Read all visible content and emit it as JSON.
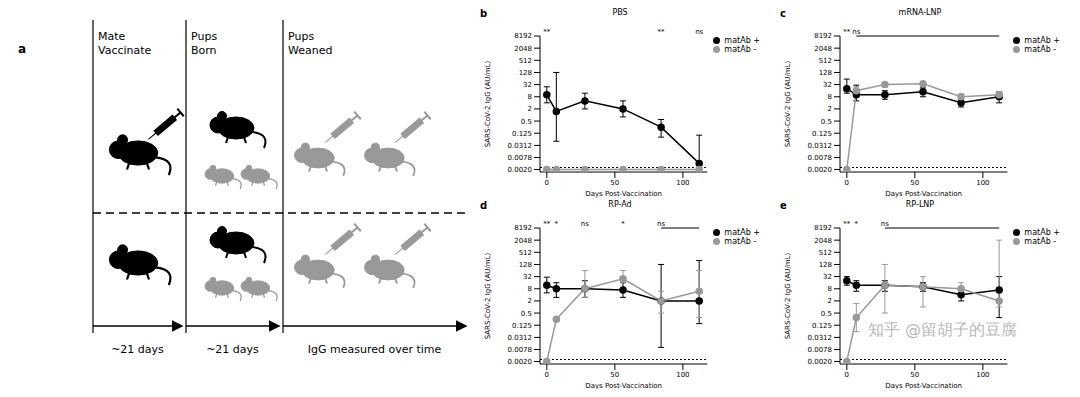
{
  "diagram": {
    "label": "a",
    "columns": [
      {
        "title": [
          "Mate",
          "Vaccinate"
        ]
      },
      {
        "title": [
          "Pups",
          "Born"
        ]
      },
      {
        "title": [
          "Pups",
          "Weaned"
        ]
      }
    ],
    "timeline": [
      "~21 days",
      "~21 days",
      "IgG measured over time"
    ]
  },
  "watermark": "知乎 @留胡子的豆腐",
  "chart_data": [
    {
      "panel": "b",
      "type": "line",
      "title": "PBS",
      "x_label": "Days Post-Vaccination",
      "y_label": "SARS-CoV-2 IgG (AU/mL)",
      "x": [
        0,
        7,
        28,
        56,
        84,
        112
      ],
      "xlim": [
        -5,
        118
      ],
      "xticks": [
        0,
        50,
        100
      ],
      "ylim": [
        0.0015,
        8192
      ],
      "yticks": [
        {
          "value": 0.002,
          "label": "0.0020"
        },
        0.0078,
        0.0312,
        0.125,
        0.5,
        2,
        8,
        32,
        128,
        512,
        2048,
        8192
      ],
      "log": "y",
      "legend": "right",
      "dotted_line": 0.0025,
      "annotations": [
        {
          "x": 0,
          "text": "**"
        },
        {
          "x": 84,
          "text": "**"
        },
        {
          "x": 112,
          "text": "ns"
        }
      ],
      "series": [
        {
          "name": "matAb +",
          "color": "#000000",
          "marker": "circle",
          "values": [
            10,
            1.5,
            5,
            2,
            0.25,
            0.004
          ],
          "error_low": [
            4,
            0.05,
            2,
            0.8,
            0.08,
            0.0025
          ],
          "error_high": [
            25,
            128,
            12,
            5,
            0.6,
            0.1
          ]
        },
        {
          "name": "matAb -",
          "color": "#999999",
          "marker": "circle",
          "values": [
            0.002,
            0.002,
            0.002,
            0.002,
            0.002,
            0.002
          ],
          "error_low": [
            null,
            null,
            null,
            null,
            null,
            null
          ],
          "error_high": [
            null,
            null,
            null,
            null,
            null,
            null
          ]
        }
      ]
    },
    {
      "panel": "c",
      "type": "line",
      "title": "mRNA-LNP",
      "x_label": "Days Post-Vaccination",
      "y_label": "SARS-CoV-2 IgG (AU/mL)",
      "x": [
        0,
        7,
        28,
        56,
        84,
        112
      ],
      "xlim": [
        -5,
        118
      ],
      "xticks": [
        0,
        50,
        100
      ],
      "ylim": [
        0.0015,
        8192
      ],
      "yticks": [
        {
          "value": 0.002,
          "label": "0.0020"
        },
        0.0078,
        0.0312,
        0.125,
        0.5,
        2,
        8,
        32,
        128,
        512,
        2048,
        8192
      ],
      "log": "y",
      "legend": "right",
      "dotted_line": 0.0025,
      "annotations": [
        {
          "x": 0,
          "text": "**"
        },
        {
          "x": 7,
          "text": "ns",
          "span": [
            7,
            112
          ]
        }
      ],
      "series": [
        {
          "name": "matAb +",
          "color": "#000000",
          "marker": "circle",
          "values": [
            20,
            10,
            10,
            14,
            4,
            8
          ],
          "error_low": [
            12,
            5,
            6,
            8,
            2.5,
            4
          ],
          "error_high": [
            60,
            30,
            16,
            22,
            7,
            14
          ]
        },
        {
          "name": "matAb -",
          "color": "#999999",
          "marker": "circle",
          "values": [
            0.002,
            16,
            32,
            35,
            8,
            10
          ],
          "error_low": [
            null,
            10,
            24,
            26,
            6,
            7
          ],
          "error_high": [
            null,
            25,
            42,
            45,
            11,
            14
          ]
        }
      ]
    },
    {
      "panel": "d",
      "type": "line",
      "title": "RP-Ad",
      "x_label": "Days Post-Vaccination",
      "y_label": "SARS-CoV-2 IgG (AU/mL)",
      "x": [
        0,
        7,
        28,
        56,
        84,
        112
      ],
      "xlim": [
        -5,
        118
      ],
      "xticks": [
        0,
        50,
        100
      ],
      "ylim": [
        0.0015,
        8192
      ],
      "yticks": [
        {
          "value": 0.002,
          "label": "0.0020"
        },
        0.0078,
        0.0312,
        0.125,
        0.5,
        2,
        8,
        32,
        128,
        512,
        2048,
        8192
      ],
      "log": "y",
      "legend": "right",
      "dotted_line": 0.0025,
      "annotations": [
        {
          "x": 0,
          "text": "**"
        },
        {
          "x": 7,
          "text": "*"
        },
        {
          "x": 28,
          "text": "ns"
        },
        {
          "x": 56,
          "text": "*"
        },
        {
          "x": 84,
          "text": "ns",
          "span": [
            84,
            112
          ]
        }
      ],
      "series": [
        {
          "name": "matAb +",
          "color": "#000000",
          "marker": "circle",
          "values": [
            12,
            8,
            8,
            7,
            2,
            2
          ],
          "error_low": [
            5,
            3,
            3,
            3,
            0.01,
            0.15
          ],
          "error_high": [
            30,
            16,
            20,
            16,
            128,
            200
          ]
        },
        {
          "name": "matAb -",
          "color": "#999999",
          "marker": "circle",
          "values": [
            0.002,
            0.25,
            8,
            25,
            2,
            6
          ],
          "error_low": [
            null,
            0.2,
            3,
            16,
            0.5,
            0.3
          ],
          "error_high": [
            null,
            0.3,
            64,
            64,
            6,
            64
          ]
        }
      ]
    },
    {
      "panel": "e",
      "type": "line",
      "title": "RP-LNP",
      "x_label": "Days Post-Vaccination",
      "y_label": "SARS-CoV-2 IgG (AU/mL)",
      "x": [
        0,
        7,
        28,
        56,
        84,
        112
      ],
      "xlim": [
        -5,
        118
      ],
      "xticks": [
        0,
        50,
        100
      ],
      "ylim": [
        0.0015,
        8192
      ],
      "yticks": [
        {
          "value": 0.002,
          "label": "0.0020"
        },
        0.0078,
        0.0312,
        0.125,
        0.5,
        2,
        8,
        32,
        128,
        512,
        2048,
        8192
      ],
      "log": "y",
      "legend": "right",
      "dotted_line": 0.0025,
      "annotations": [
        {
          "x": 0,
          "text": "**"
        },
        {
          "x": 7,
          "text": "*"
        },
        {
          "x": 28,
          "text": "ns",
          "span": [
            28,
            112
          ]
        }
      ],
      "series": [
        {
          "name": "matAb +",
          "color": "#000000",
          "marker": "circle",
          "values": [
            20,
            12,
            12,
            10,
            4,
            7
          ],
          "error_low": [
            12,
            6,
            6,
            6,
            2,
            0.3
          ],
          "error_high": [
            32,
            20,
            20,
            16,
            10,
            32
          ]
        },
        {
          "name": "matAb -",
          "color": "#999999",
          "marker": "circle",
          "values": [
            0.002,
            0.3,
            12,
            10,
            8,
            2
          ],
          "error_low": [
            null,
            0.06,
            0.5,
            1,
            4,
            1
          ],
          "error_high": [
            null,
            1.5,
            128,
            32,
            16,
            2048
          ]
        }
      ]
    }
  ]
}
